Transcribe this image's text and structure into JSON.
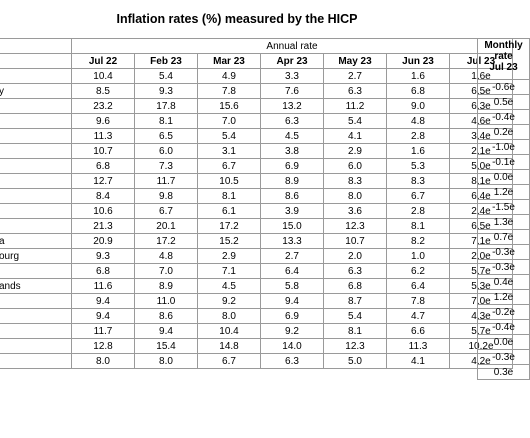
{
  "title": "Inflation rates (%) measured by the HICP",
  "annual_header": "Annual rate",
  "monthly_header": [
    "Monthly",
    "rate",
    "Jul 23"
  ],
  "columns": [
    "Jul 22",
    "Feb 23",
    "Mar 23",
    "Apr 23",
    "May 23",
    "Jun 23",
    "Jul 23"
  ],
  "rows": [
    {
      "name": "",
      "values": [
        "10.4",
        "5.4",
        "4.9",
        "3.3",
        "2.7",
        "1.6",
        "1.6e"
      ],
      "monthly": "-0.6e"
    },
    {
      "name": "y",
      "values": [
        "8.5",
        "9.3",
        "7.8",
        "7.6",
        "6.3",
        "6.8",
        "6.5e"
      ],
      "monthly": "0.5e"
    },
    {
      "name": "",
      "values": [
        "23.2",
        "17.8",
        "15.6",
        "13.2",
        "11.2",
        "9.0",
        "6.3e"
      ],
      "monthly": "-0.4e"
    },
    {
      "name": "",
      "values": [
        "9.6",
        "8.1",
        "7.0",
        "6.3",
        "5.4",
        "4.8",
        "4.6e"
      ],
      "monthly": "0.2e"
    },
    {
      "name": "",
      "values": [
        "11.3",
        "6.5",
        "5.4",
        "4.5",
        "4.1",
        "2.8",
        "3.4e"
      ],
      "monthly": "-1.0e"
    },
    {
      "name": "",
      "values": [
        "10.7",
        "6.0",
        "3.1",
        "3.8",
        "2.9",
        "1.6",
        "2.1e"
      ],
      "monthly": "-0.1e"
    },
    {
      "name": "",
      "values": [
        "6.8",
        "7.3",
        "6.7",
        "6.9",
        "6.0",
        "5.3",
        "5.0e"
      ],
      "monthly": "0.0e"
    },
    {
      "name": "",
      "values": [
        "12.7",
        "11.7",
        "10.5",
        "8.9",
        "8.3",
        "8.3",
        "8.1e"
      ],
      "monthly": "1.2e"
    },
    {
      "name": "",
      "values": [
        "8.4",
        "9.8",
        "8.1",
        "8.6",
        "8.0",
        "6.7",
        "6.4e"
      ],
      "monthly": "-1.5e"
    },
    {
      "name": "",
      "values": [
        "10.6",
        "6.7",
        "6.1",
        "3.9",
        "3.6",
        "2.8",
        "2.4e"
      ],
      "monthly": "1.3e"
    },
    {
      "name": "",
      "values": [
        "21.3",
        "20.1",
        "17.2",
        "15.0",
        "12.3",
        "8.1",
        "6.5e"
      ],
      "monthly": "0.7e"
    },
    {
      "name": "a",
      "values": [
        "20.9",
        "17.2",
        "15.2",
        "13.3",
        "10.7",
        "8.2",
        "7.1e"
      ],
      "monthly": "-0.3e"
    },
    {
      "name": "ourg",
      "values": [
        "9.3",
        "4.8",
        "2.9",
        "2.7",
        "2.0",
        "1.0",
        "2.0e"
      ],
      "monthly": "-0.3e"
    },
    {
      "name": "",
      "values": [
        "6.8",
        "7.0",
        "7.1",
        "6.4",
        "6.3",
        "6.2",
        "5.7e"
      ],
      "monthly": "0.4e"
    },
    {
      "name": "ands",
      "values": [
        "11.6",
        "8.9",
        "4.5",
        "5.8",
        "6.8",
        "6.4",
        "5.3e"
      ],
      "monthly": "1.2e"
    },
    {
      "name": "",
      "values": [
        "9.4",
        "11.0",
        "9.2",
        "9.4",
        "8.7",
        "7.8",
        "7.0e"
      ],
      "monthly": "-0.2e"
    },
    {
      "name": "",
      "values": [
        "9.4",
        "8.6",
        "8.0",
        "6.9",
        "5.4",
        "4.7",
        "4.3e"
      ],
      "monthly": "-0.4e"
    },
    {
      "name": "",
      "values": [
        "11.7",
        "9.4",
        "10.4",
        "9.2",
        "8.1",
        "6.6",
        "5.7e"
      ],
      "monthly": "0.0e"
    },
    {
      "name": "",
      "values": [
        "12.8",
        "15.4",
        "14.8",
        "14.0",
        "12.3",
        "11.3",
        "10.2e"
      ],
      "monthly": "-0.3e"
    },
    {
      "name": "",
      "values": [
        "8.0",
        "8.0",
        "6.7",
        "6.3",
        "5.0",
        "4.1",
        "4.2e"
      ],
      "monthly": "0.3e"
    }
  ]
}
